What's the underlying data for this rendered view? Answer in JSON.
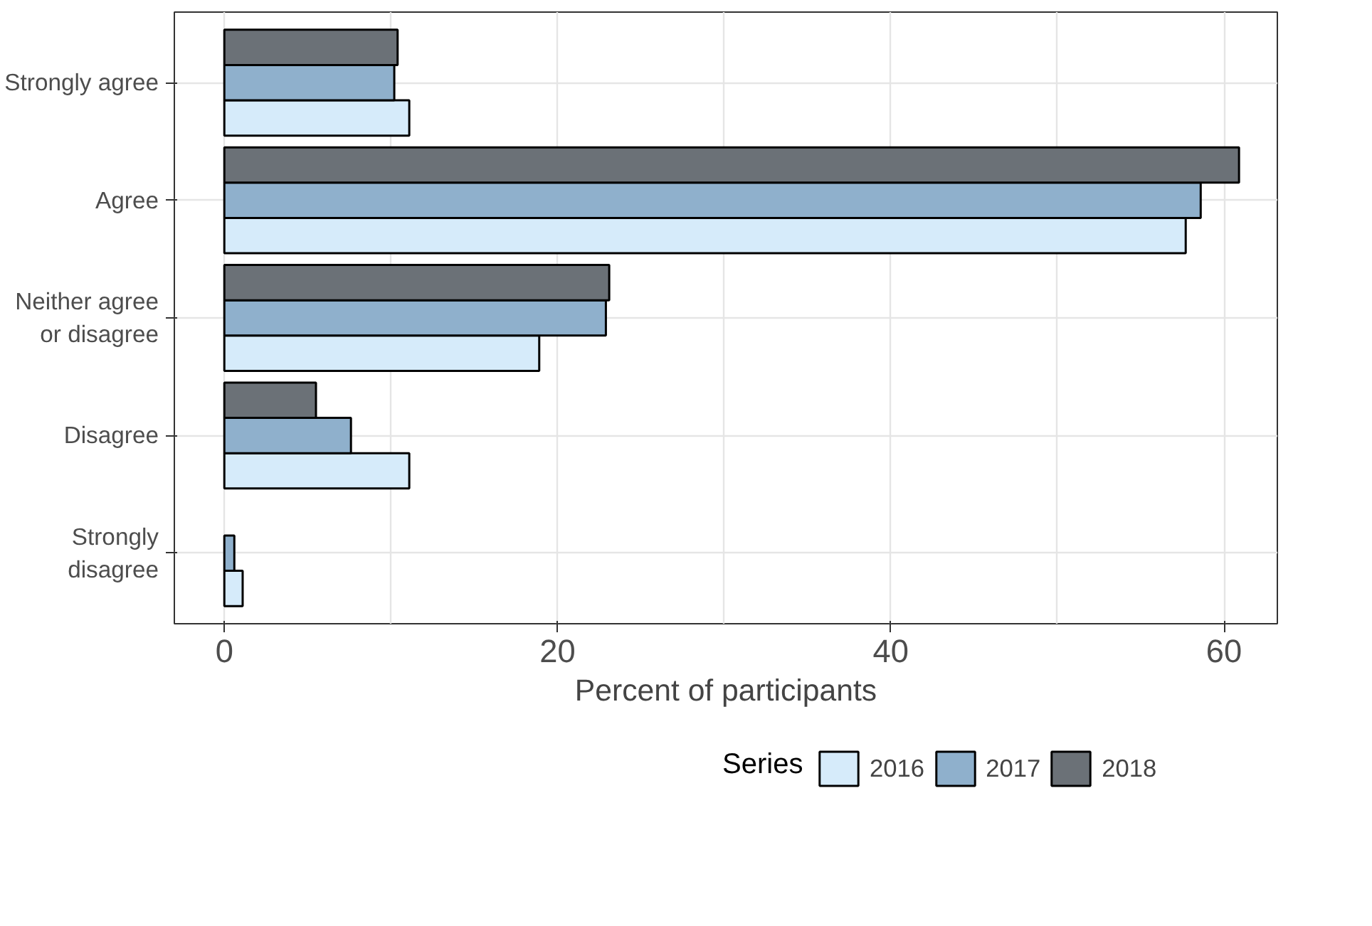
{
  "chart_data": {
    "type": "bar",
    "orientation": "horizontal",
    "categories": [
      "Strongly agree",
      "Agree",
      "Neither agree or disagree",
      "Disagree",
      "Strongly disagree"
    ],
    "series": [
      {
        "name": "2016",
        "color": "#d6ebfa",
        "values": [
          11.1,
          57.7,
          18.9,
          11.1,
          1.1
        ]
      },
      {
        "name": "2017",
        "color": "#8fb0cc",
        "values": [
          10.2,
          58.6,
          22.9,
          7.6,
          0.6
        ]
      },
      {
        "name": "2018",
        "color": "#6b7177",
        "values": [
          10.4,
          60.9,
          23.1,
          5.5,
          null
        ]
      }
    ],
    "xlabel": "Percent of participants",
    "legend_title": "Series",
    "xlim": [
      -3,
      63.2
    ],
    "xticks": [
      0,
      {
        "value": 10,
        "label": null
      },
      20,
      {
        "value": 30,
        "label": null
      },
      40,
      {
        "value": 50,
        "label": null
      },
      60
    ],
    "grid": true,
    "legend": "bottom"
  }
}
